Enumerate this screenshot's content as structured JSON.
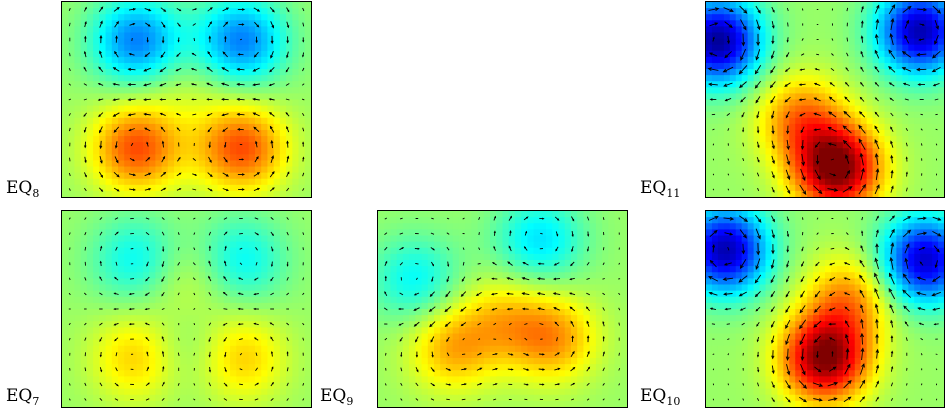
{
  "panels": [
    {
      "id": "eq8",
      "label_main": "EQ",
      "label_sub": "8",
      "colormap": "jet",
      "blobs": [
        [
          0.3,
          0.2,
          -0.55
        ],
        [
          0.72,
          0.2,
          -0.55
        ],
        [
          0.3,
          0.75,
          0.55
        ],
        [
          0.72,
          0.75,
          0.55
        ],
        [
          0.5,
          0.45,
          0.08
        ]
      ]
    },
    {
      "id": "eq7",
      "label_main": "EQ",
      "label_sub": "7",
      "colormap": "jet",
      "blobs": [
        [
          0.3,
          0.25,
          -0.3
        ],
        [
          0.72,
          0.25,
          -0.3
        ],
        [
          0.3,
          0.75,
          0.3
        ],
        [
          0.72,
          0.75,
          0.3
        ],
        [
          0.5,
          0.35,
          0.15
        ],
        [
          0.5,
          0.7,
          -0.12
        ]
      ]
    },
    {
      "id": "eq9",
      "label_main": "EQ",
      "label_sub": "9",
      "colormap": "jet",
      "blobs": [
        [
          0.15,
          0.35,
          -0.3
        ],
        [
          0.65,
          0.15,
          -0.35
        ],
        [
          0.3,
          0.7,
          0.35
        ],
        [
          0.7,
          0.65,
          0.4
        ],
        [
          0.5,
          0.55,
          0.25
        ]
      ]
    },
    {
      "id": "eq11",
      "label_main": "EQ",
      "label_sub": "11",
      "colormap": "jet",
      "blobs": [
        [
          0.05,
          0.2,
          -1.0
        ],
        [
          0.9,
          0.15,
          -0.95
        ],
        [
          0.55,
          0.85,
          1.0
        ],
        [
          0.4,
          0.6,
          0.45
        ]
      ]
    },
    {
      "id": "eq10",
      "label_main": "EQ",
      "label_sub": "10",
      "colormap": "jet",
      "blobs": [
        [
          0.08,
          0.2,
          -0.95
        ],
        [
          0.92,
          0.25,
          -0.9
        ],
        [
          0.5,
          0.75,
          0.95
        ],
        [
          0.6,
          0.45,
          0.4
        ]
      ]
    }
  ]
}
